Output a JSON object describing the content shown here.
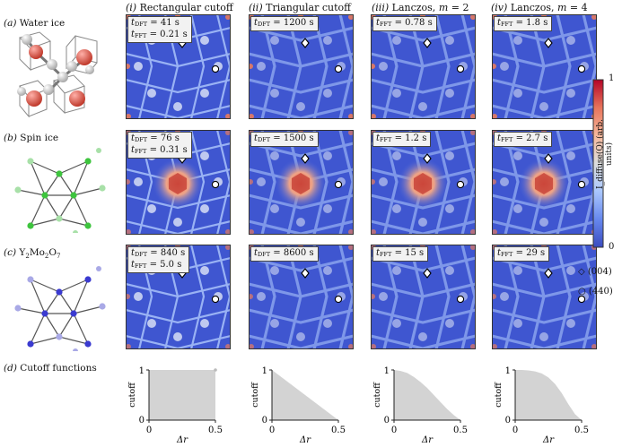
{
  "rows": [
    {
      "letter": "(a)",
      "name": "Water ice"
    },
    {
      "letter": "(b)",
      "name": "Spin ice"
    },
    {
      "letter": "(c)",
      "name_main": "Y",
      "name_sub1": "2",
      "name_mid": "Mo",
      "name_sub2": "2",
      "name_end": "O",
      "name_sub3": "7"
    },
    {
      "letter": "(d)",
      "name": "Cutoff functions"
    }
  ],
  "columns": [
    {
      "numeral": "(i)",
      "title": "Rectangular cutoff"
    },
    {
      "numeral": "(ii)",
      "title": "Triangular cutoff"
    },
    {
      "numeral": "(iii)",
      "title": "Lanczos, ",
      "m_label": "m",
      "m_value": " = 2"
    },
    {
      "numeral": "(iv)",
      "title": "Lanczos, ",
      "m_label": "m",
      "m_value": " = 4"
    }
  ],
  "timings": {
    "a": [
      {
        "dft": "= 41 s",
        "fft": "= 0.21 s"
      },
      {
        "dft": "= 1200 s"
      },
      {
        "fft": "= 0.78 s"
      },
      {
        "fft": "= 1.8 s"
      }
    ],
    "b": [
      {
        "dft": "= 76 s",
        "fft": "= 0.31 s"
      },
      {
        "dft": "= 1500 s"
      },
      {
        "fft": "= 1.2 s"
      },
      {
        "fft": "= 2.7 s"
      }
    ],
    "c": [
      {
        "dft": "= 840 s",
        "fft": "= 5.0 s"
      },
      {
        "dft": "= 8600 s"
      },
      {
        "fft": "= 15 s"
      },
      {
        "fft": "= 29 s"
      }
    ]
  },
  "t_symbol": "t",
  "dft_sub": "DFT",
  "fft_sub": "FFT",
  "colorbar": {
    "max_label": "1",
    "min_label": "0",
    "axis_label": "I_diffuse(Q) (arb. units)",
    "colors": [
      "#b40426",
      "#e7745b",
      "#f7b89c",
      "#dcdddd",
      "#aac7fd",
      "#6788ee",
      "#3b4cc0"
    ]
  },
  "legend": [
    {
      "symbol": "diamond",
      "label": "(004)"
    },
    {
      "symbol": "circle",
      "label": "(440)"
    }
  ],
  "chart_data": [
    {
      "type": "area",
      "title": "Rectangular cutoff",
      "xlabel": "Δr",
      "ylabel": "cutoff",
      "x": [
        0,
        0.5
      ],
      "y": [
        1,
        1
      ],
      "xlim": [
        0,
        0.5
      ],
      "ylim": [
        0,
        1
      ],
      "xticks": [
        "0",
        "0.5"
      ],
      "yticks": [
        "0",
        "1"
      ]
    },
    {
      "type": "area",
      "title": "Triangular cutoff",
      "xlabel": "Δr",
      "ylabel": "cutoff",
      "x": [
        0,
        0.5
      ],
      "y": [
        1,
        0
      ],
      "xlim": [
        0,
        0.5
      ],
      "ylim": [
        0,
        1
      ],
      "xticks": [
        "0",
        "0.5"
      ],
      "yticks": [
        "0",
        "1"
      ]
    },
    {
      "type": "area",
      "title": "Lanczos, m = 2",
      "xlabel": "Δr",
      "ylabel": "cutoff",
      "x": [
        0,
        0.05,
        0.1,
        0.15,
        0.2,
        0.25,
        0.3,
        0.35,
        0.4,
        0.45,
        0.5
      ],
      "y": [
        1,
        0.98,
        0.94,
        0.86,
        0.76,
        0.64,
        0.5,
        0.36,
        0.22,
        0.1,
        0
      ],
      "xlim": [
        0,
        0.5
      ],
      "ylim": [
        0,
        1
      ],
      "xticks": [
        "0",
        "0.5"
      ],
      "yticks": [
        "0",
        "1"
      ]
    },
    {
      "type": "area",
      "title": "Lanczos, m = 4",
      "xlabel": "Δr",
      "ylabel": "cutoff",
      "x": [
        0,
        0.05,
        0.1,
        0.15,
        0.2,
        0.25,
        0.3,
        0.35,
        0.4,
        0.45,
        0.5
      ],
      "y": [
        1,
        1,
        0.99,
        0.97,
        0.93,
        0.85,
        0.72,
        0.54,
        0.32,
        0.12,
        0
      ],
      "xlim": [
        0,
        0.5
      ],
      "ylim": [
        0,
        1
      ],
      "xticks": [
        "0",
        "0.5"
      ],
      "yticks": [
        "0",
        "1"
      ]
    }
  ]
}
